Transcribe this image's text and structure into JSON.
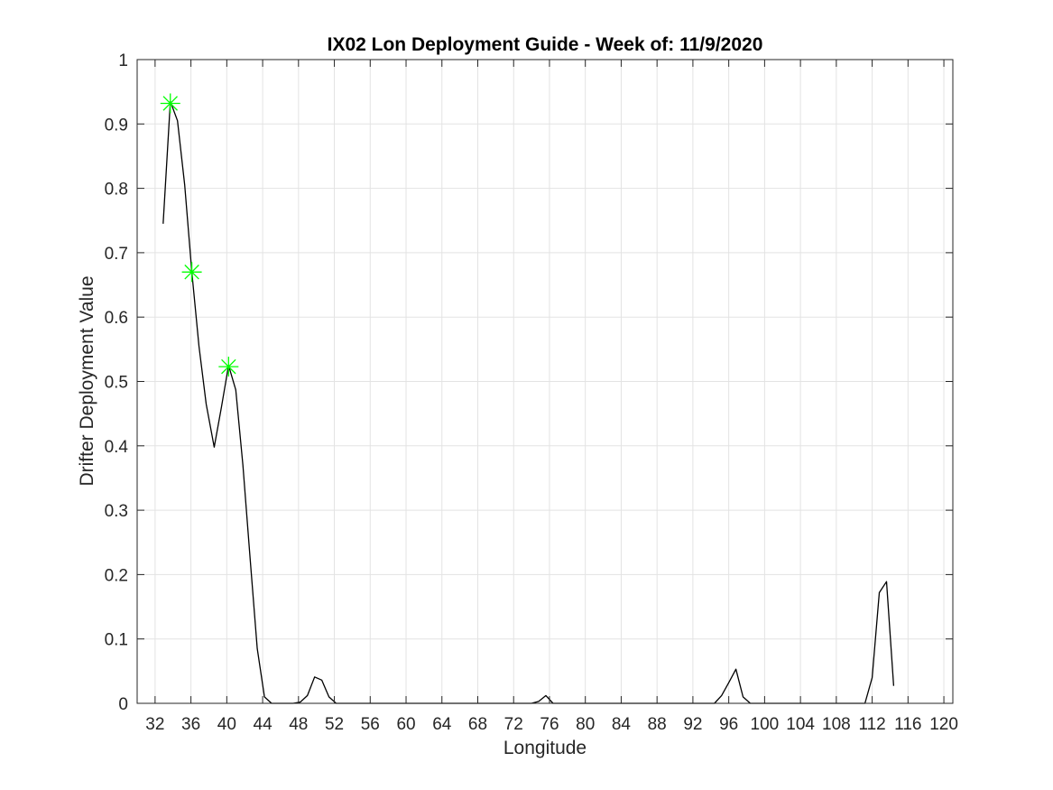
{
  "chart_data": {
    "type": "line",
    "title": "IX02 Lon Deployment Guide - Week of: 11/9/2020",
    "xlabel": "Longitude",
    "ylabel": "Drifter Deployment Value",
    "xlim": [
      30,
      121
    ],
    "ylim": [
      0,
      1
    ],
    "xticks": [
      32,
      36,
      40,
      44,
      48,
      52,
      56,
      60,
      64,
      68,
      72,
      76,
      80,
      84,
      88,
      92,
      96,
      100,
      104,
      108,
      112,
      116,
      120
    ],
    "yticks": [
      0,
      0.1,
      0.2,
      0.3,
      0.4,
      0.5,
      0.6,
      0.7,
      0.8,
      0.9,
      1
    ],
    "grid": true,
    "box": true,
    "series": [
      {
        "color": "#000000",
        "x": [
          32.9,
          33.7,
          34.5,
          35.3,
          36.1,
          36.9,
          37.7,
          38.6,
          39.4,
          40.2,
          41.0,
          41.8,
          42.6,
          43.4,
          44.2,
          45.0,
          45.8,
          46.6,
          47.4,
          48.2,
          49.0,
          49.8,
          50.6,
          51.4,
          52.2,
          53,
          60,
          70,
          74,
          74.8,
          75.6,
          76.4,
          80,
          90,
          94.4,
          95.2,
          96.0,
          96.8,
          97.6,
          98.4,
          99.2,
          100,
          105,
          111.2,
          112.0,
          112.8,
          113.6,
          114.4
        ],
        "y": [
          0.745,
          0.935,
          0.905,
          0.805,
          0.67,
          0.555,
          0.465,
          0.398,
          0.46,
          0.525,
          0.487,
          0.37,
          0.225,
          0.085,
          0.01,
          0.0,
          0.0,
          0.0,
          0.0,
          0.002,
          0.012,
          0.041,
          0.036,
          0.01,
          0.0,
          0.0,
          0.0,
          0.0,
          0.0,
          0.003,
          0.012,
          0.0,
          0.0,
          0.0,
          0.0,
          0.012,
          0.032,
          0.053,
          0.01,
          0.0,
          0.0,
          0.0,
          0.0,
          0.0,
          0.04,
          0.172,
          0.189,
          0.027
        ]
      }
    ],
    "markers": {
      "color": "#00ff00",
      "symbol": "asterisk",
      "x": [
        33.7,
        36.1,
        40.2
      ],
      "y": [
        0.932,
        0.67,
        0.523
      ]
    }
  }
}
